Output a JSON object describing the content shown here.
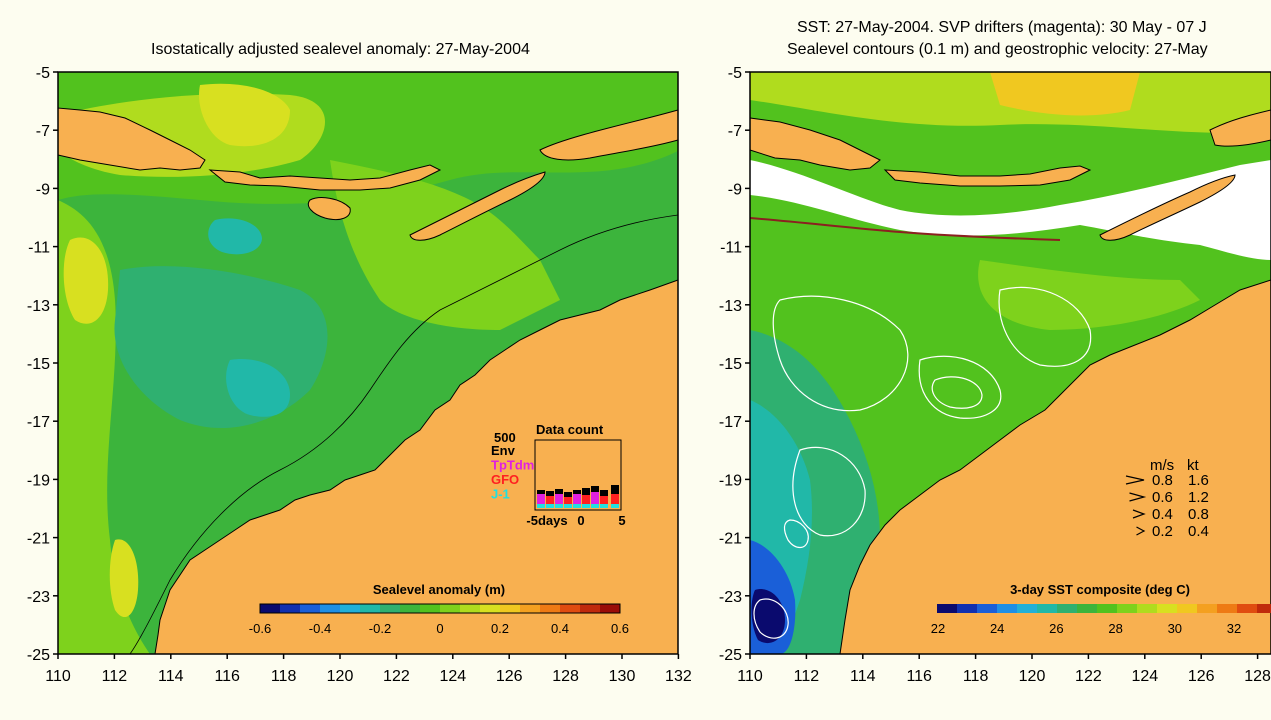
{
  "left_panel": {
    "title": "Isostatically adjusted sealevel anomaly: 27-May-2004",
    "y_ticks": [
      "-5",
      "-7",
      "-9",
      "-11",
      "-13",
      "-15",
      "-17",
      "-19",
      "-21",
      "-23",
      "-25"
    ],
    "x_ticks": [
      "110",
      "112",
      "114",
      "116",
      "118",
      "120",
      "122",
      "124",
      "126",
      "128",
      "130",
      "132"
    ],
    "colorbar": {
      "label": "Sealevel anomaly (m)",
      "ticks": [
        "-0.6",
        "-0.4",
        "-0.2",
        "0",
        "0.2",
        "0.4",
        "0.6"
      ],
      "colors": [
        "#0a0a6e",
        "#1030b0",
        "#1a5fd8",
        "#1e8fe6",
        "#22b0d8",
        "#21b8a8",
        "#2fb070",
        "#3cb43c",
        "#52c21e",
        "#7ed21c",
        "#b0dc1e",
        "#d8e020",
        "#f0c820",
        "#f4a020",
        "#ee7a14",
        "#e04c10",
        "#c02a0c",
        "#9a0c08"
      ]
    },
    "legend": {
      "title": "Data count",
      "scale_label": "500",
      "entries": [
        {
          "label": "Env",
          "color": "#000000"
        },
        {
          "label": "TpTdm",
          "color": "#e020e0"
        },
        {
          "label": "GFO",
          "color": "#ff2020"
        },
        {
          "label": "J-1",
          "color": "#20e0e0"
        }
      ],
      "axis_labels": [
        "-5days",
        "0",
        "5"
      ]
    }
  },
  "right_panel": {
    "title_line1": "SST: 27-May-2004. SVP drifters (magenta): 30 May - 07 J",
    "title_line2": "Sealevel contours (0.1 m) and geostrophic velocity: 27-May",
    "y_ticks": [
      "-5",
      "-7",
      "-9",
      "-11",
      "-13",
      "-15",
      "-17",
      "-19",
      "-21",
      "-23",
      "-25"
    ],
    "x_ticks": [
      "110",
      "112",
      "114",
      "116",
      "118",
      "120",
      "122",
      "124",
      "126",
      "128"
    ],
    "colorbar": {
      "label": "3-day SST composite (deg C)",
      "ticks": [
        "22",
        "24",
        "26",
        "28",
        "30",
        "32"
      ],
      "colors": [
        "#0a0a6e",
        "#1030b0",
        "#1a5fd8",
        "#1e8fe6",
        "#22b0d8",
        "#21b8a8",
        "#2fb070",
        "#3cb43c",
        "#52c21e",
        "#7ed21c",
        "#b0dc1e",
        "#d8e020",
        "#f0c820",
        "#f4a020",
        "#ee7a14",
        "#e04c10",
        "#c02a0c",
        "#9a0c08"
      ]
    },
    "velocity_legend": {
      "header_ms": "m/s",
      "header_kt": "kt",
      "rows": [
        {
          "ms": "0.8",
          "kt": "1.6",
          "scale": 1.0
        },
        {
          "ms": "0.6",
          "kt": "1.2",
          "scale": 0.75
        },
        {
          "ms": "0.4",
          "kt": "0.8",
          "scale": 0.5
        },
        {
          "ms": "0.2",
          "kt": "0.4",
          "scale": 0.25
        }
      ]
    }
  }
}
